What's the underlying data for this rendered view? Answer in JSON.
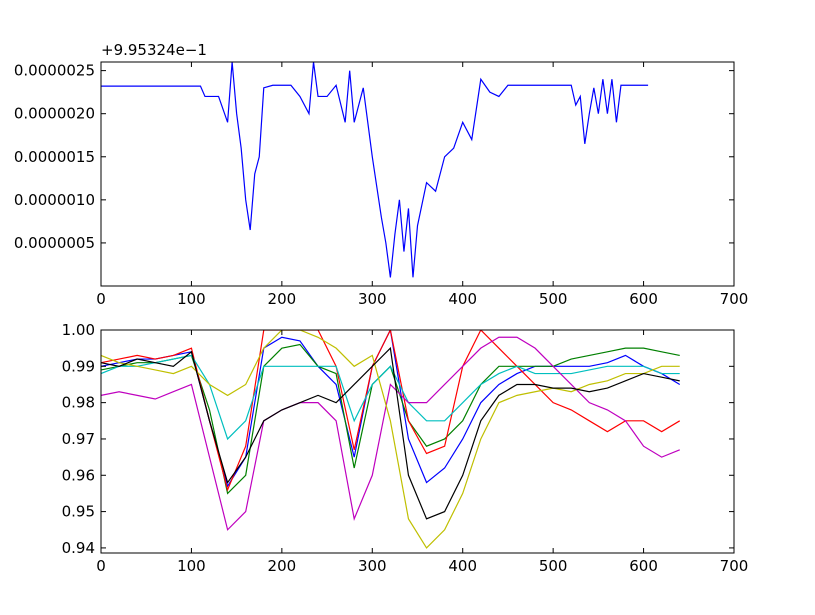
{
  "chart_data": [
    {
      "type": "line",
      "offset_text": "+9.95324e−1",
      "x": [
        0,
        10,
        20,
        30,
        40,
        50,
        60,
        70,
        80,
        90,
        100,
        110,
        115,
        120,
        130,
        140,
        145,
        150,
        155,
        160,
        165,
        170,
        175,
        180,
        190,
        200,
        210,
        220,
        230,
        235,
        240,
        250,
        260,
        270,
        275,
        280,
        290,
        300,
        310,
        315,
        320,
        325,
        330,
        335,
        340,
        345,
        350,
        360,
        370,
        380,
        390,
        400,
        410,
        420,
        430,
        440,
        450,
        460,
        500,
        520,
        525,
        530,
        535,
        540,
        545,
        550,
        555,
        560,
        565,
        570,
        575,
        580,
        590,
        600,
        605
      ],
      "series": [
        {
          "color": "#0000ff",
          "values": [
            2.32e-06,
            2.32e-06,
            2.32e-06,
            2.32e-06,
            2.32e-06,
            2.32e-06,
            2.32e-06,
            2.32e-06,
            2.32e-06,
            2.32e-06,
            2.32e-06,
            2.32e-06,
            2.2e-06,
            2.2e-06,
            2.2e-06,
            1.9e-06,
            2.6e-06,
            2e-06,
            1.6e-06,
            1e-06,
            6.5e-07,
            1.3e-06,
            1.5e-06,
            2.3e-06,
            2.33e-06,
            2.33e-06,
            2.33e-06,
            2.2e-06,
            2e-06,
            2.6e-06,
            2.2e-06,
            2.2e-06,
            2.33e-06,
            1.9e-06,
            2.5e-06,
            1.9e-06,
            2.3e-06,
            1.5e-06,
            8e-07,
            5e-07,
            1e-07,
            6e-07,
            1e-06,
            4e-07,
            9e-07,
            1e-07,
            7e-07,
            1.2e-06,
            1.1e-06,
            1.5e-06,
            1.6e-06,
            1.9e-06,
            1.7e-06,
            2.4e-06,
            2.25e-06,
            2.2e-06,
            2.33e-06,
            2.33e-06,
            2.33e-06,
            2.33e-06,
            2.1e-06,
            2.2e-06,
            1.65e-06,
            2e-06,
            2.3e-06,
            2e-06,
            2.4e-06,
            2e-06,
            2.4e-06,
            1.9e-06,
            2.33e-06,
            2.33e-06,
            2.33e-06,
            2.33e-06,
            2.33e-06
          ]
        }
      ],
      "xlim": [
        0,
        700
      ],
      "xticks": [
        0,
        100,
        200,
        300,
        400,
        500,
        600,
        700
      ],
      "ylim": [
        0,
        2.6e-06
      ],
      "yticks": [
        {
          "value": 5e-07,
          "label": "0.0000005"
        },
        {
          "value": 1e-06,
          "label": "0.0000010"
        },
        {
          "value": 1.5e-06,
          "label": "0.0000015"
        },
        {
          "value": 2e-06,
          "label": "0.0000020"
        },
        {
          "value": 2.5e-06,
          "label": "0.0000025"
        }
      ]
    },
    {
      "type": "line",
      "x": [
        0,
        20,
        40,
        60,
        80,
        100,
        120,
        140,
        160,
        180,
        200,
        220,
        240,
        260,
        280,
        300,
        320,
        340,
        360,
        380,
        400,
        420,
        440,
        460,
        480,
        500,
        520,
        540,
        560,
        580,
        600,
        620,
        640
      ],
      "series": [
        {
          "color": "#0000ff",
          "values": [
            0.99,
            0.991,
            0.992,
            0.992,
            0.993,
            0.994,
            0.975,
            0.957,
            0.965,
            0.995,
            0.998,
            0.997,
            0.99,
            0.985,
            0.965,
            0.99,
            1.0,
            0.97,
            0.958,
            0.962,
            0.97,
            0.98,
            0.985,
            0.988,
            0.99,
            0.99,
            0.99,
            0.99,
            0.991,
            0.993,
            0.99,
            0.988,
            0.985
          ]
        },
        {
          "color": "#008000",
          "values": [
            0.989,
            0.99,
            0.991,
            0.991,
            0.992,
            0.993,
            0.978,
            0.955,
            0.96,
            0.99,
            0.995,
            0.996,
            0.99,
            0.988,
            0.962,
            0.985,
            0.99,
            0.975,
            0.968,
            0.97,
            0.975,
            0.985,
            0.99,
            0.99,
            0.99,
            0.99,
            0.992,
            0.993,
            0.994,
            0.995,
            0.995,
            0.994,
            0.993
          ]
        },
        {
          "color": "#ff0000",
          "values": [
            0.991,
            0.992,
            0.993,
            0.992,
            0.993,
            0.995,
            0.975,
            0.956,
            0.968,
            1.0,
            1.0,
            1.0,
            1.0,
            0.99,
            0.967,
            0.99,
            1.0,
            0.975,
            0.966,
            0.968,
            0.99,
            1.0,
            0.995,
            0.99,
            0.985,
            0.98,
            0.978,
            0.975,
            0.972,
            0.975,
            0.975,
            0.972,
            0.975
          ]
        },
        {
          "color": "#00bfbf",
          "values": [
            0.988,
            0.99,
            0.99,
            0.991,
            0.992,
            0.993,
            0.985,
            0.97,
            0.975,
            0.99,
            0.99,
            0.99,
            0.99,
            0.99,
            0.975,
            0.985,
            0.99,
            0.98,
            0.975,
            0.975,
            0.98,
            0.985,
            0.988,
            0.99,
            0.988,
            0.988,
            0.988,
            0.989,
            0.99,
            0.99,
            0.99,
            0.988,
            0.988
          ]
        },
        {
          "color": "#bf00bf",
          "values": [
            0.982,
            0.983,
            0.982,
            0.981,
            0.983,
            0.985,
            0.965,
            0.945,
            0.95,
            0.975,
            0.978,
            0.98,
            0.98,
            0.975,
            0.948,
            0.96,
            0.985,
            0.98,
            0.98,
            0.985,
            0.99,
            0.995,
            0.998,
            0.998,
            0.995,
            0.99,
            0.985,
            0.98,
            0.978,
            0.975,
            0.968,
            0.965,
            0.967
          ]
        },
        {
          "color": "#bfbf00",
          "values": [
            0.993,
            0.991,
            0.99,
            0.989,
            0.988,
            0.99,
            0.985,
            0.982,
            0.985,
            0.995,
            1.0,
            1.0,
            0.998,
            0.995,
            0.99,
            0.993,
            0.975,
            0.948,
            0.94,
            0.945,
            0.955,
            0.97,
            0.98,
            0.982,
            0.983,
            0.984,
            0.983,
            0.985,
            0.986,
            0.988,
            0.988,
            0.99,
            0.99
          ]
        },
        {
          "color": "#000000",
          "values": [
            0.991,
            0.99,
            0.992,
            0.991,
            0.99,
            0.994,
            0.975,
            0.958,
            0.965,
            0.975,
            0.978,
            0.98,
            0.982,
            0.98,
            0.985,
            0.99,
            0.995,
            0.96,
            0.948,
            0.95,
            0.96,
            0.975,
            0.982,
            0.985,
            0.985,
            0.984,
            0.984,
            0.983,
            0.984,
            0.986,
            0.988,
            0.987,
            0.986
          ]
        }
      ],
      "xlim": [
        0,
        700
      ],
      "xticks": [
        0,
        100,
        200,
        300,
        400,
        500,
        600,
        700
      ],
      "ylim": [
        0.9386,
        1.0
      ],
      "yticks": [
        0.94,
        0.95,
        0.96,
        0.97,
        0.98,
        0.99,
        {
          "value": 1.0,
          "label": "1.00"
        }
      ]
    }
  ]
}
